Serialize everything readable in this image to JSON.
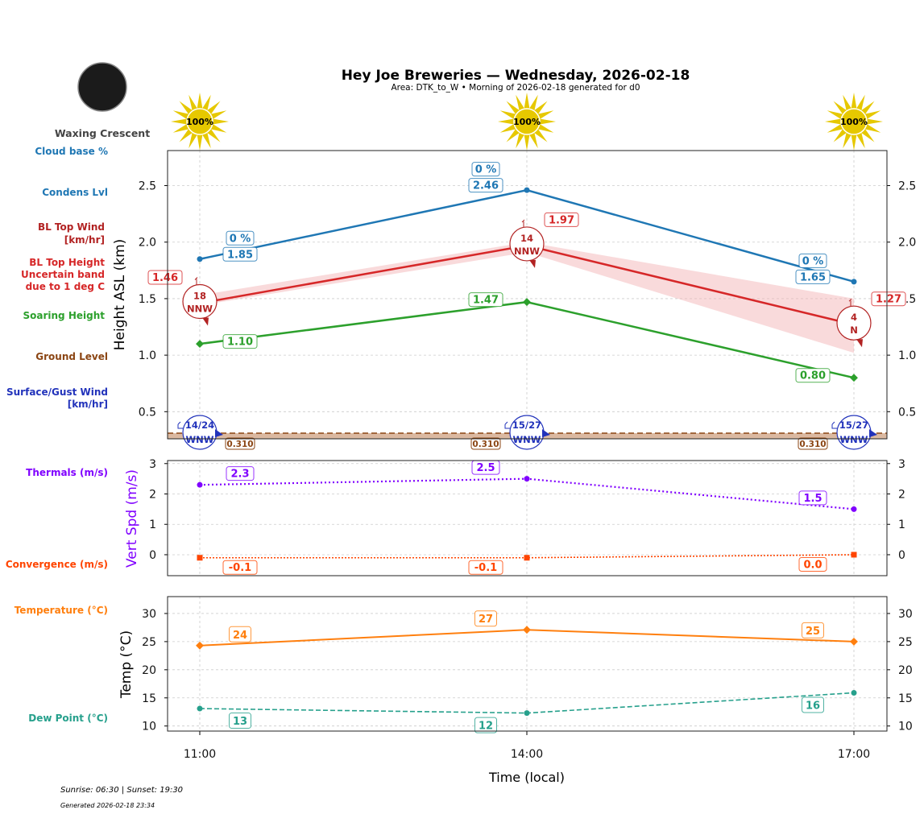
{
  "header": {
    "title": "Hey Joe Breweries — Wednesday, 2026-02-18",
    "subtitle": "Area: DTK_to_W • Morning of 2026-02-18 generated for d0",
    "moon_phase": "Waxing Crescent",
    "sun_text": "Sunrise: 06:30 | Sunset: 19:30",
    "generated": "Generated 2026-02-18 23:34"
  },
  "row_labels": {
    "cloud_base": "Cloud base %",
    "condens": "Condens Lvl",
    "bl_wind_1": "BL Top Wind",
    "bl_wind_2": "[km/hr]",
    "bl_height_1": "BL Top Height",
    "bl_height_2": "Uncertain band",
    "bl_height_3": "due to 1 deg C",
    "soaring": "Soaring Height",
    "ground": "Ground Level",
    "surface_1": "Surface/Gust Wind",
    "surface_2": "[km/hr]",
    "thermals": "Thermals (m/s)",
    "convergence": "Convergence (m/s)",
    "temperature": "Temperature (°C)",
    "dewpoint": "Dew Point (°C)"
  },
  "colors": {
    "condens": "#1f77b4",
    "bl_top": "#d62728",
    "bl_wind": "#b22222",
    "soaring": "#2ca02c",
    "ground": "#8b4513",
    "surface_wind": "#2233bb",
    "thermals": "#8000ff",
    "convergence": "#ff4500",
    "temperature": "#ff7f0e",
    "dewpoint": "#26a08c",
    "sun": "#e6c800"
  },
  "chart_data": [
    {
      "type": "line",
      "ylabel": "Height ASL (km)",
      "ylim": [
        0.26,
        2.81
      ],
      "yticks": [
        "0.5",
        "1.0",
        "1.5",
        "2.0",
        "2.5"
      ],
      "x": [
        "11:00",
        "14:00",
        "17:00"
      ],
      "grid": true,
      "sun_cover": [
        "100%",
        "100%",
        "100%"
      ],
      "cloud_base_pct": [
        "0 %",
        "0 %",
        "0 %"
      ],
      "condens_lvl": [
        1.85,
        2.46,
        1.65
      ],
      "bl_top": [
        1.46,
        1.97,
        1.27
      ],
      "bl_top_band_low": [
        1.44,
        1.91,
        1.02
      ],
      "bl_top_band_high": [
        1.53,
        2.0,
        1.5
      ],
      "bl_wind_speed": [
        "18",
        "14",
        "4"
      ],
      "bl_wind_dir": [
        "NNW",
        "NNW",
        "N"
      ],
      "soaring": [
        1.1,
        1.47,
        0.8
      ],
      "ground": [
        0.31,
        0.31,
        0.31
      ],
      "ground_labels": [
        "0.310",
        "0.310",
        "0.310"
      ],
      "surface_wind": [
        "14/24",
        "15/27",
        "15/27"
      ],
      "surface_dir": [
        "WNW",
        "WNW",
        "WNW"
      ]
    },
    {
      "type": "line",
      "ylabel": "Vert Spd (m/s)",
      "ylim": [
        -0.69,
        3.1
      ],
      "yticks": [
        "0",
        "1",
        "2",
        "3"
      ],
      "x": [
        "11:00",
        "14:00",
        "17:00"
      ],
      "grid": true,
      "thermals": [
        2.3,
        2.5,
        1.5
      ],
      "convergence": [
        -0.1,
        -0.1,
        0.0
      ]
    },
    {
      "type": "line",
      "ylabel": "Temp (°C)",
      "xlabel": "Time (local)",
      "ylim": [
        9.1,
        33
      ],
      "yticks": [
        "10",
        "15",
        "20",
        "25",
        "30"
      ],
      "x": [
        "11:00",
        "14:00",
        "17:00"
      ],
      "grid": true,
      "temperature": [
        24.3,
        27.1,
        25.0
      ],
      "temperature_labels": [
        "24",
        "27",
        "25"
      ],
      "dewpoint": [
        13.1,
        12.3,
        15.9
      ],
      "dewpoint_labels": [
        "13",
        "12",
        "16"
      ]
    }
  ]
}
